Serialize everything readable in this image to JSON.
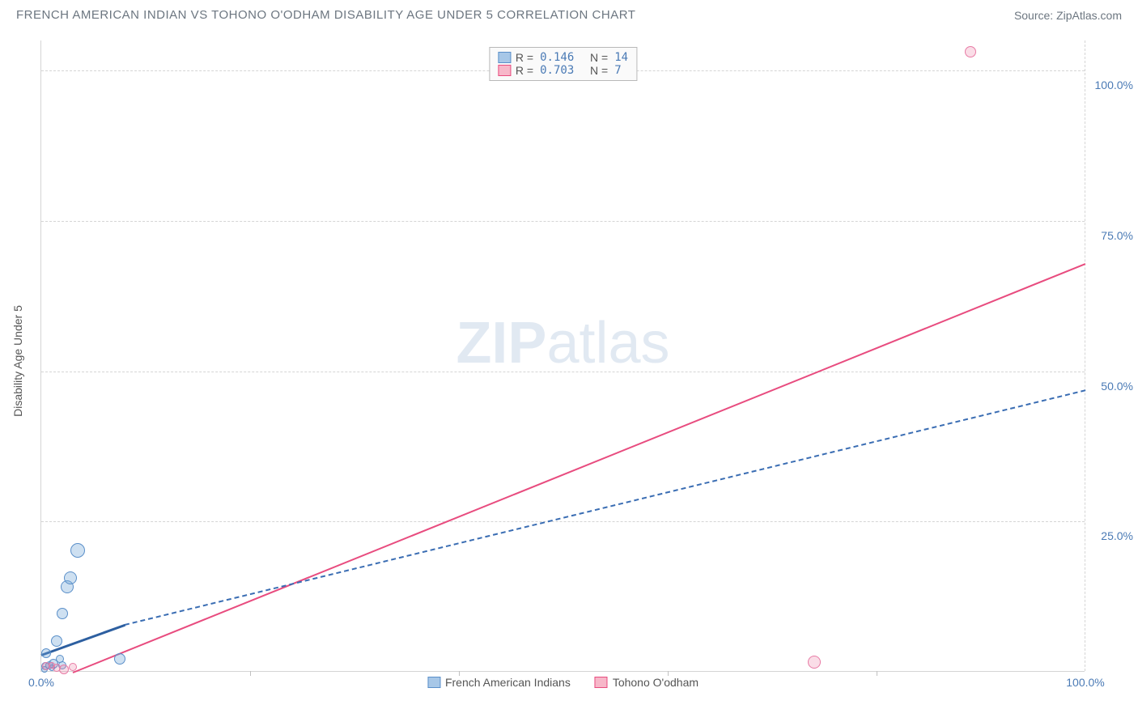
{
  "header": {
    "title": "FRENCH AMERICAN INDIAN VS TOHONO O'ODHAM DISABILITY AGE UNDER 5 CORRELATION CHART",
    "source": "Source: ZipAtlas.com"
  },
  "watermark": {
    "zip": "ZIP",
    "atlas": "atlas"
  },
  "chart": {
    "type": "scatter",
    "yaxis_label": "Disability Age Under 5",
    "xlim": [
      0,
      100
    ],
    "ylim": [
      0,
      105
    ],
    "yticks": [
      {
        "v": 25,
        "label": "25.0%"
      },
      {
        "v": 50,
        "label": "50.0%"
      },
      {
        "v": 75,
        "label": "75.0%"
      },
      {
        "v": 100,
        "label": "100.0%"
      }
    ],
    "xticks": [
      {
        "v": 0,
        "label": "0.0%"
      },
      {
        "v": 100,
        "label": "100.0%"
      }
    ],
    "xminor_ticks": [
      20,
      40,
      60,
      80
    ],
    "background_color": "#ffffff",
    "grid_color": "#d5d5d5",
    "series": {
      "blue": {
        "label": "French American Indians",
        "color_fill": "#a7c7e7",
        "color_stroke": "#5a8fc9",
        "R": "0.146",
        "N": "14",
        "points": [
          {
            "x": 0.4,
            "y": 0.8,
            "r": 5
          },
          {
            "x": 0.8,
            "y": 1.0,
            "r": 5
          },
          {
            "x": 1.2,
            "y": 1.2,
            "r": 6
          },
          {
            "x": 0.5,
            "y": 3.0,
            "r": 6
          },
          {
            "x": 1.5,
            "y": 5.0,
            "r": 7
          },
          {
            "x": 2.0,
            "y": 9.5,
            "r": 7
          },
          {
            "x": 2.5,
            "y": 14.0,
            "r": 8
          },
          {
            "x": 2.8,
            "y": 15.5,
            "r": 8
          },
          {
            "x": 3.5,
            "y": 20.0,
            "r": 9
          },
          {
            "x": 7.5,
            "y": 2.0,
            "r": 7
          },
          {
            "x": 1.0,
            "y": 0.5,
            "r": 4
          },
          {
            "x": 0.3,
            "y": 0.3,
            "r": 4
          },
          {
            "x": 2.0,
            "y": 1.0,
            "r": 5
          },
          {
            "x": 1.8,
            "y": 2.0,
            "r": 5
          }
        ],
        "trend_solid": {
          "x1": 0,
          "y1": 3,
          "x2": 8,
          "y2": 8
        },
        "trend_dash": {
          "x1": 8,
          "y1": 8,
          "x2": 100,
          "y2": 47
        }
      },
      "pink": {
        "label": "Tohono O'odham",
        "color_fill": "#f7b7c9",
        "color_stroke": "#e84c7f",
        "R": "0.703",
        "N": "7",
        "points": [
          {
            "x": 0.5,
            "y": 0.8,
            "r": 5
          },
          {
            "x": 1.5,
            "y": 0.5,
            "r": 5
          },
          {
            "x": 2.2,
            "y": 0.3,
            "r": 6
          },
          {
            "x": 3.0,
            "y": 0.7,
            "r": 5
          },
          {
            "x": 1.0,
            "y": 1.0,
            "r": 4
          },
          {
            "x": 74,
            "y": 1.5,
            "r": 8
          },
          {
            "x": 89,
            "y": 103,
            "r": 7
          }
        ],
        "trend_solid": {
          "x1": 3,
          "y1": 0,
          "x2": 100,
          "y2": 68
        }
      }
    },
    "legend_top": {
      "rows": [
        {
          "swatch": "blue",
          "R_label": "R =",
          "R_val": "0.146",
          "N_label": "N =",
          "N_val": "14"
        },
        {
          "swatch": "pink",
          "R_label": "R =",
          "R_val": "0.703",
          "N_label": "N =",
          "N_val": " 7"
        }
      ]
    },
    "legend_bottom": [
      {
        "swatch": "blue",
        "label": "French American Indians"
      },
      {
        "swatch": "pink",
        "label": "Tohono O'odham"
      }
    ]
  }
}
